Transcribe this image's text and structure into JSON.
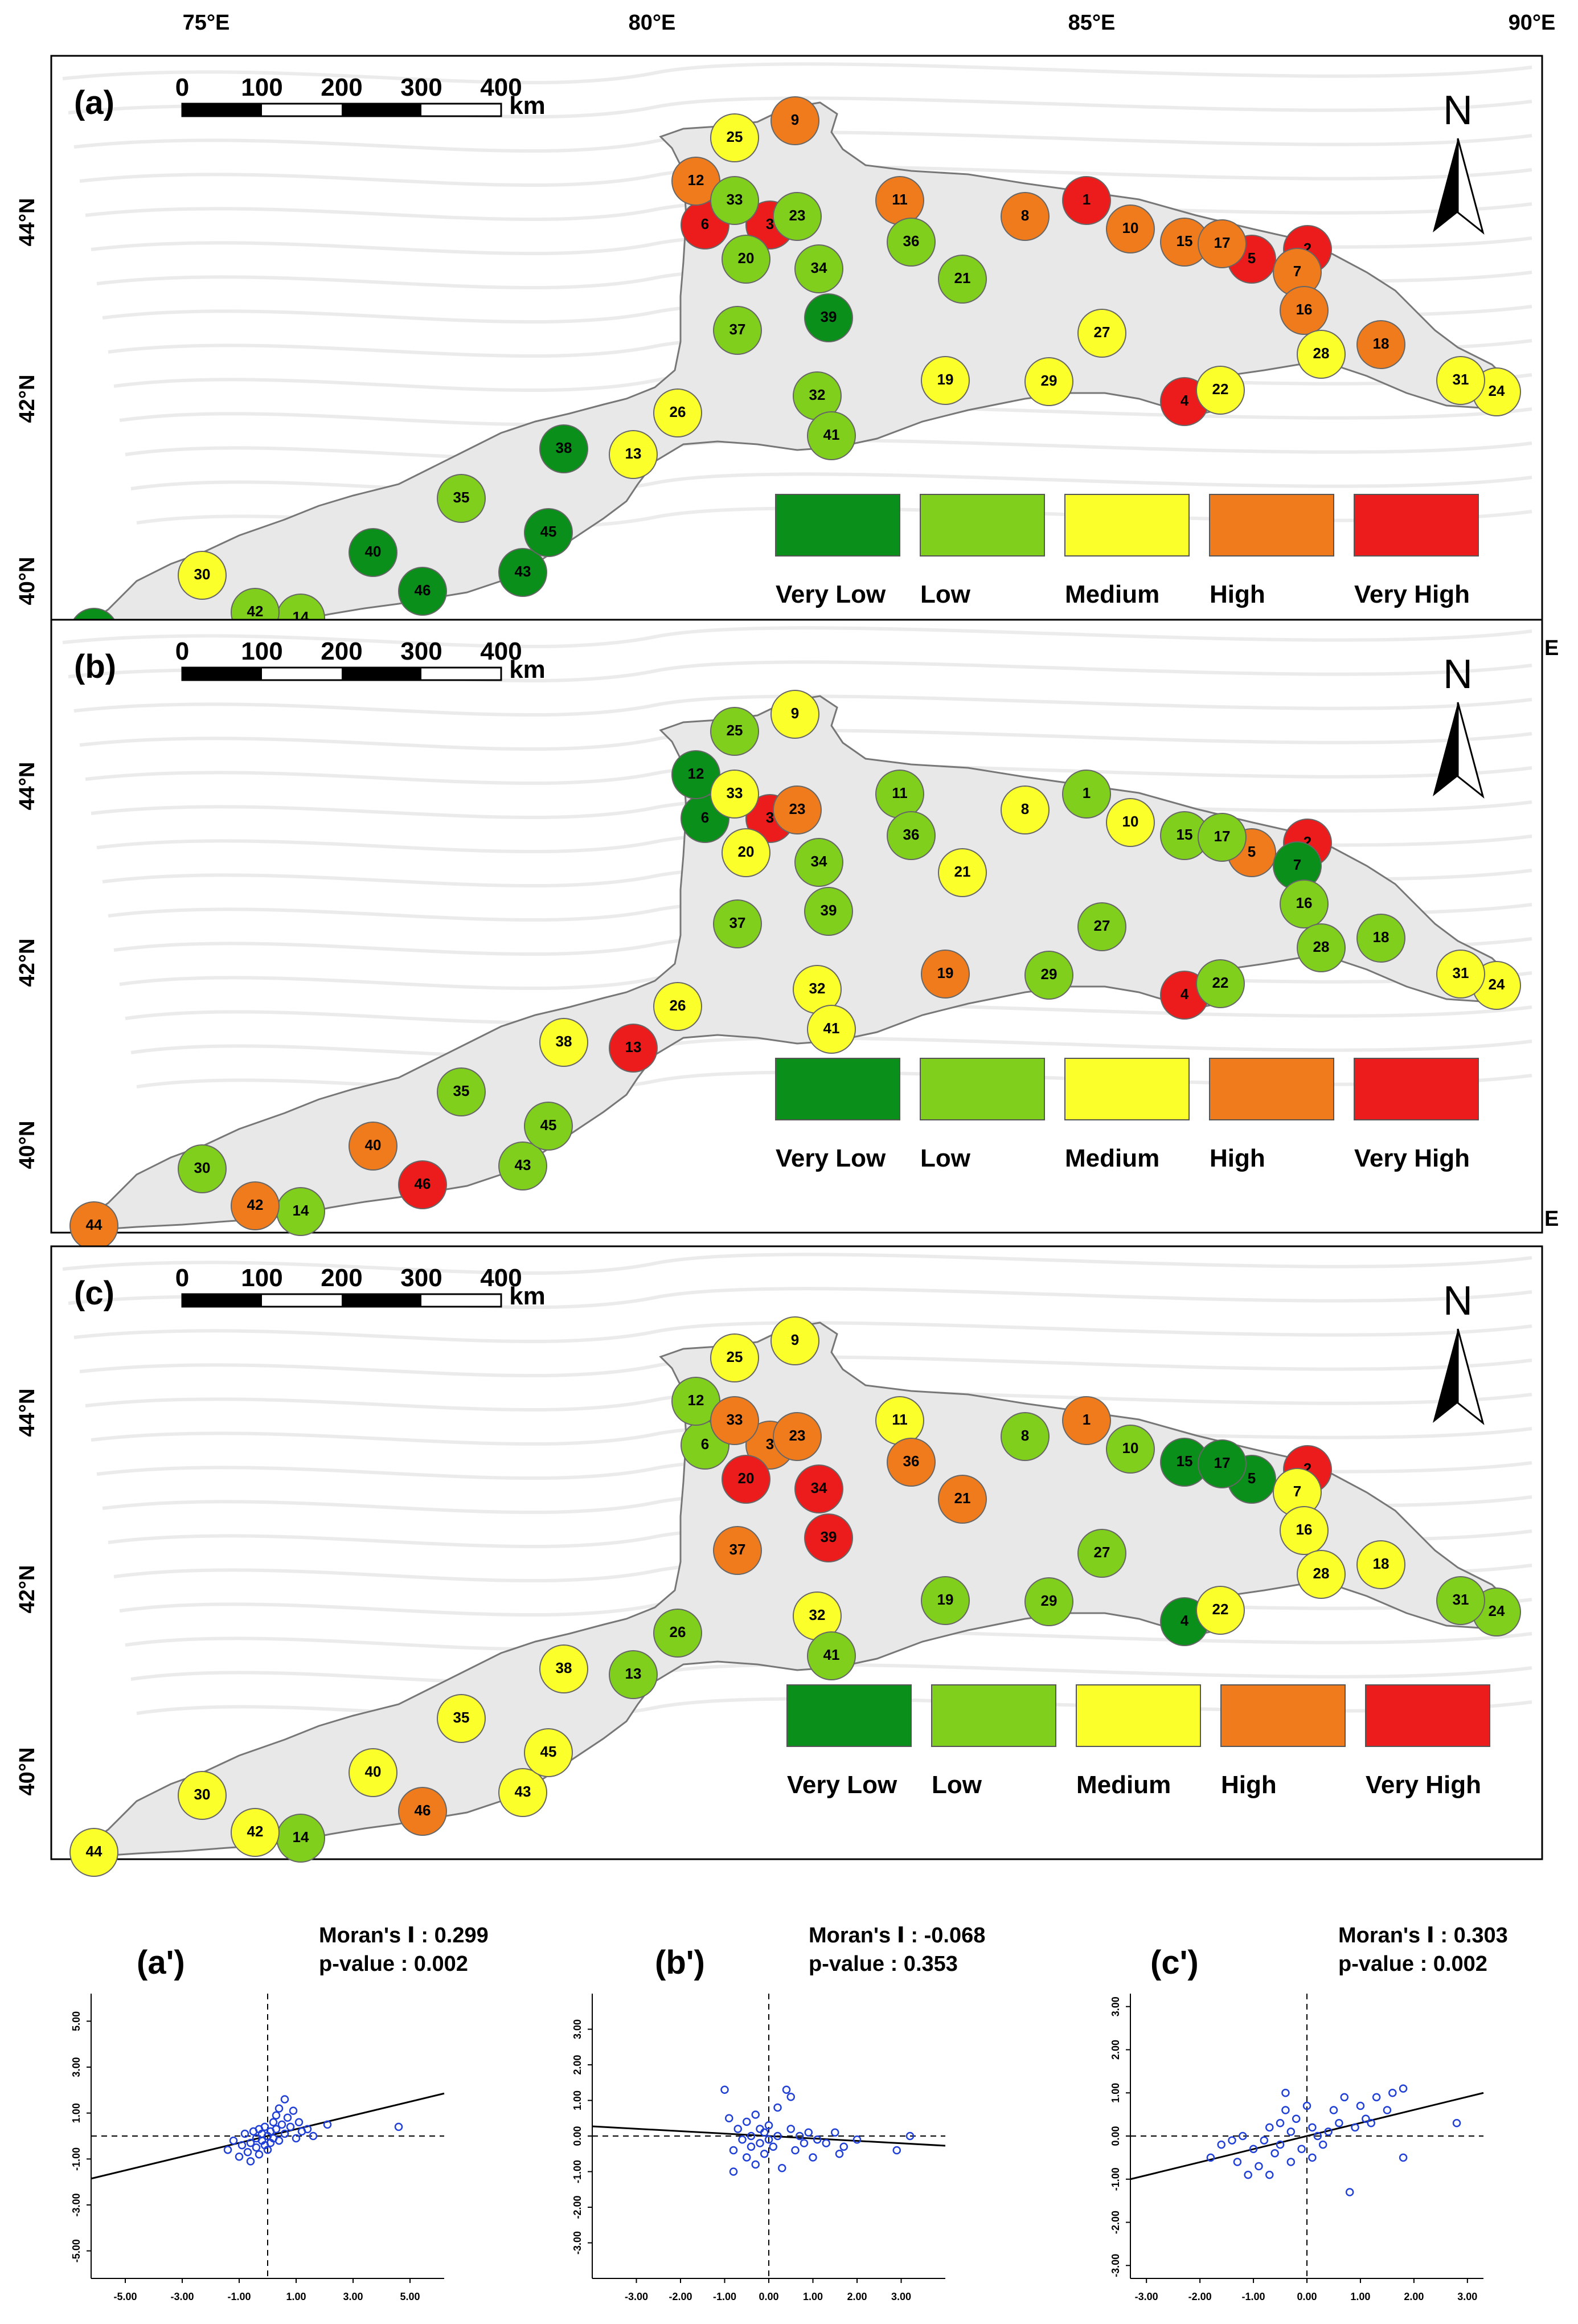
{
  "figure": {
    "top_axis_labels": [
      "75°E",
      "80°E",
      "85°E",
      "90°E"
    ],
    "left_axis_labels": [
      "44°N",
      "42°N",
      "40°N"
    ],
    "stray_label": "E",
    "north_label": "N",
    "scale_bar": {
      "ticks": [
        "0",
        "100",
        "200",
        "300",
        "400"
      ],
      "unit": "km"
    },
    "legend": {
      "classes": [
        {
          "name": "Very Low",
          "color": "#0a8f1a"
        },
        {
          "name": "Low",
          "color": "#7fcf1c"
        },
        {
          "name": "Medium",
          "color": "#fbff2a"
        },
        {
          "name": "High",
          "color": "#f07b1c"
        },
        {
          "name": "Very High",
          "color": "#ec1c1c"
        }
      ]
    },
    "region_ids": [
      "1",
      "2",
      "3",
      "4",
      "5",
      "6",
      "7",
      "8",
      "9",
      "10",
      "11",
      "12",
      "13",
      "14",
      "15",
      "16",
      "17",
      "18",
      "19",
      "20",
      "21",
      "22",
      "23",
      "24",
      "25",
      "26",
      "27",
      "28",
      "29",
      "30",
      "31",
      "32",
      "33",
      "34",
      "35",
      "36",
      "37",
      "38",
      "39",
      "40",
      "41",
      "42",
      "43",
      "44",
      "45",
      "46"
    ]
  },
  "panels": [
    {
      "label": "(a)",
      "region_classes": {
        "1": "Very High",
        "2": "Very High",
        "3": "Very High",
        "4": "Very High",
        "5": "Very High",
        "6": "Very High",
        "7": "High",
        "8": "High",
        "9": "High",
        "10": "High",
        "11": "High",
        "12": "High",
        "15": "High",
        "16": "High",
        "17": "High",
        "18": "High",
        "13": "Medium",
        "19": "Medium",
        "22": "Medium",
        "24": "Medium",
        "25": "Medium",
        "26": "Medium",
        "27": "Medium",
        "28": "Medium",
        "29": "Medium",
        "30": "Medium",
        "31": "Medium",
        "14": "Low",
        "20": "Low",
        "21": "Low",
        "23": "Low",
        "32": "Low",
        "33": "Low",
        "34": "Low",
        "35": "Low",
        "36": "Low",
        "37": "Low",
        "41": "Low",
        "42": "Low",
        "38": "Very Low",
        "39": "Very Low",
        "40": "Very Low",
        "43": "Very Low",
        "44": "Very Low",
        "45": "Very Low",
        "46": "Very Low"
      }
    },
    {
      "label": "(b)",
      "region_classes": {
        "2": "Very High",
        "3": "Very High",
        "4": "Very High",
        "13": "Very High",
        "46": "Very High",
        "5": "High",
        "19": "High",
        "23": "High",
        "40": "High",
        "42": "High",
        "44": "High",
        "8": "Medium",
        "9": "Medium",
        "10": "Medium",
        "20": "Medium",
        "21": "Medium",
        "24": "Medium",
        "26": "Medium",
        "31": "Medium",
        "32": "Medium",
        "33": "Medium",
        "38": "Medium",
        "41": "Medium",
        "1": "Low",
        "11": "Low",
        "14": "Low",
        "15": "Low",
        "16": "Low",
        "17": "Low",
        "18": "Low",
        "22": "Low",
        "25": "Low",
        "27": "Low",
        "28": "Low",
        "29": "Low",
        "30": "Low",
        "34": "Low",
        "35": "Low",
        "36": "Low",
        "37": "Low",
        "39": "Low",
        "43": "Low",
        "45": "Low",
        "6": "Very Low",
        "7": "Very Low",
        "12": "Very Low"
      }
    },
    {
      "label": "(c)",
      "region_classes": {
        "2": "Very High",
        "20": "Very High",
        "34": "Very High",
        "39": "Very High",
        "1": "High",
        "3": "High",
        "21": "High",
        "23": "High",
        "33": "High",
        "36": "High",
        "37": "High",
        "46": "High",
        "7": "Medium",
        "9": "Medium",
        "11": "Medium",
        "16": "Medium",
        "18": "Medium",
        "22": "Medium",
        "25": "Medium",
        "28": "Medium",
        "30": "Medium",
        "32": "Medium",
        "35": "Medium",
        "38": "Medium",
        "40": "Medium",
        "42": "Medium",
        "43": "Medium",
        "44": "Medium",
        "45": "Medium",
        "6": "Low",
        "8": "Low",
        "10": "Low",
        "12": "Low",
        "13": "Low",
        "14": "Low",
        "19": "Low",
        "24": "Low",
        "26": "Low",
        "27": "Low",
        "29": "Low",
        "31": "Low",
        "41": "Low",
        "4": "Very Low",
        "5": "Very Low",
        "15": "Very Low",
        "17": "Very Low"
      }
    }
  ],
  "chart_data": [
    {
      "type": "scatter",
      "title": "(a')",
      "morans_label": "Moran's Ⅰ : 0.299",
      "p_label": "p-value : 0.002",
      "morans_i": 0.299,
      "p_value": 0.002,
      "xlim": [
        -6.2,
        6.2
      ],
      "ylim": [
        -6.2,
        6.2
      ],
      "xticks": [
        "-5.00",
        "-3.00",
        "-1.00",
        "1.00",
        "3.00",
        "5.00"
      ],
      "yticks": [
        "5.00",
        "3.00",
        "1.00",
        "-1.00",
        "-3.00",
        "-5.00"
      ],
      "xtick_values": [
        -5,
        -3,
        -1,
        1,
        3,
        5
      ],
      "ytick_values": [
        5,
        3,
        1,
        -1,
        -3,
        -5
      ],
      "slope": 0.299,
      "points": [
        [
          -1.4,
          -0.6
        ],
        [
          -1.2,
          -0.2
        ],
        [
          -1.0,
          -0.9
        ],
        [
          -0.9,
          -0.4
        ],
        [
          -0.8,
          0.1
        ],
        [
          -0.7,
          -0.7
        ],
        [
          -0.6,
          -0.3
        ],
        [
          -0.6,
          -1.1
        ],
        [
          -0.5,
          0.2
        ],
        [
          -0.4,
          -0.5
        ],
        [
          -0.4,
          -0.1
        ],
        [
          -0.3,
          0.3
        ],
        [
          -0.3,
          -0.8
        ],
        [
          -0.2,
          -0.2
        ],
        [
          -0.2,
          0.1
        ],
        [
          -0.1,
          -0.4
        ],
        [
          -0.1,
          0.4
        ],
        [
          0.0,
          -0.6
        ],
        [
          0.0,
          0.0
        ],
        [
          0.1,
          0.2
        ],
        [
          0.1,
          -0.3
        ],
        [
          0.2,
          0.6
        ],
        [
          0.2,
          -0.1
        ],
        [
          0.3,
          0.9
        ],
        [
          0.3,
          0.3
        ],
        [
          0.4,
          -0.2
        ],
        [
          0.4,
          1.2
        ],
        [
          0.5,
          0.5
        ],
        [
          0.6,
          1.6
        ],
        [
          0.6,
          0.1
        ],
        [
          0.7,
          0.8
        ],
        [
          0.8,
          0.4
        ],
        [
          0.9,
          1.1
        ],
        [
          1.0,
          -0.1
        ],
        [
          1.1,
          0.6
        ],
        [
          1.2,
          0.2
        ],
        [
          1.4,
          0.3
        ],
        [
          1.6,
          0.0
        ],
        [
          2.1,
          0.5
        ],
        [
          4.6,
          0.4
        ]
      ]
    },
    {
      "type": "scatter",
      "title": "(b')",
      "morans_label": "Moran's Ⅰ : -0.068",
      "p_label": "p-value : 0.353",
      "morans_i": -0.068,
      "p_value": 0.353,
      "xlim": [
        -4.0,
        4.0
      ],
      "ylim": [
        -4.0,
        4.0
      ],
      "xticks": [
        "-3.00",
        "-2.00",
        "-1.00",
        "0.00",
        "1.00",
        "2.00",
        "3.00"
      ],
      "yticks": [
        "3.00",
        "2.00",
        "1.00",
        "0.00",
        "-1.00",
        "-2.00",
        "-3.00"
      ],
      "xtick_values": [
        -3,
        -2,
        -1,
        0,
        1,
        2,
        3
      ],
      "ytick_values": [
        3,
        2,
        1,
        0,
        -1,
        -2,
        -3
      ],
      "slope": -0.068,
      "points": [
        [
          -1.0,
          1.3
        ],
        [
          -0.9,
          0.5
        ],
        [
          -0.8,
          -0.4
        ],
        [
          -0.8,
          -1.0
        ],
        [
          -0.7,
          0.2
        ],
        [
          -0.6,
          -0.1
        ],
        [
          -0.5,
          0.4
        ],
        [
          -0.5,
          -0.6
        ],
        [
          -0.4,
          0.0
        ],
        [
          -0.4,
          -0.3
        ],
        [
          -0.3,
          0.6
        ],
        [
          -0.3,
          -0.8
        ],
        [
          -0.2,
          0.2
        ],
        [
          -0.2,
          -0.2
        ],
        [
          -0.1,
          0.1
        ],
        [
          -0.1,
          -0.5
        ],
        [
          0.0,
          -0.1
        ],
        [
          0.0,
          0.3
        ],
        [
          0.1,
          -0.3
        ],
        [
          0.2,
          0.8
        ],
        [
          0.2,
          0.0
        ],
        [
          0.3,
          -0.9
        ],
        [
          0.4,
          1.3
        ],
        [
          0.5,
          0.2
        ],
        [
          0.5,
          1.1
        ],
        [
          0.6,
          -0.4
        ],
        [
          0.7,
          0.0
        ],
        [
          0.8,
          -0.2
        ],
        [
          0.9,
          0.1
        ],
        [
          1.0,
          -0.6
        ],
        [
          1.1,
          -0.1
        ],
        [
          1.3,
          -0.2
        ],
        [
          1.5,
          0.1
        ],
        [
          1.6,
          -0.5
        ],
        [
          1.7,
          -0.3
        ],
        [
          2.0,
          -0.1
        ],
        [
          2.9,
          -0.4
        ],
        [
          3.2,
          0.0
        ]
      ]
    },
    {
      "type": "scatter",
      "title": "(c')",
      "morans_label": "Moran's Ⅰ : 0.303",
      "p_label": "p-value : 0.002",
      "morans_i": 0.303,
      "p_value": 0.002,
      "xlim": [
        -3.3,
        3.3
      ],
      "ylim": [
        -3.3,
        3.3
      ],
      "xticks": [
        "-3.00",
        "-2.00",
        "-1.00",
        "0.00",
        "1.00",
        "2.00",
        "3.00"
      ],
      "yticks": [
        "3.00",
        "2.00",
        "1.00",
        "0.00",
        "-1.00",
        "-2.00",
        "-3.00"
      ],
      "xtick_values": [
        -3,
        -2,
        -1,
        0,
        1,
        2,
        3
      ],
      "ytick_values": [
        3,
        2,
        1,
        0,
        -1,
        -2,
        -3
      ],
      "slope": 0.303,
      "points": [
        [
          -1.8,
          -0.5
        ],
        [
          -1.6,
          -0.2
        ],
        [
          -1.4,
          -0.1
        ],
        [
          -1.3,
          -0.6
        ],
        [
          -1.2,
          0.0
        ],
        [
          -1.1,
          -0.9
        ],
        [
          -1.0,
          -0.3
        ],
        [
          -0.9,
          -0.7
        ],
        [
          -0.8,
          -0.1
        ],
        [
          -0.7,
          0.2
        ],
        [
          -0.7,
          -0.9
        ],
        [
          -0.6,
          -0.4
        ],
        [
          -0.5,
          0.3
        ],
        [
          -0.5,
          -0.2
        ],
        [
          -0.4,
          0.6
        ],
        [
          -0.4,
          1.0
        ],
        [
          -0.3,
          -0.6
        ],
        [
          -0.3,
          0.1
        ],
        [
          -0.2,
          0.4
        ],
        [
          -0.1,
          -0.3
        ],
        [
          0.0,
          0.7
        ],
        [
          0.1,
          -0.5
        ],
        [
          0.1,
          0.2
        ],
        [
          0.2,
          0.0
        ],
        [
          0.3,
          -0.2
        ],
        [
          0.4,
          0.1
        ],
        [
          0.5,
          0.6
        ],
        [
          0.6,
          0.3
        ],
        [
          0.7,
          0.9
        ],
        [
          0.8,
          -1.3
        ],
        [
          0.9,
          0.2
        ],
        [
          1.0,
          0.7
        ],
        [
          1.1,
          0.4
        ],
        [
          1.2,
          0.3
        ],
        [
          1.3,
          0.9
        ],
        [
          1.5,
          0.6
        ],
        [
          1.6,
          1.0
        ],
        [
          1.8,
          1.1
        ],
        [
          1.8,
          -0.5
        ],
        [
          2.8,
          0.3
        ]
      ]
    }
  ]
}
